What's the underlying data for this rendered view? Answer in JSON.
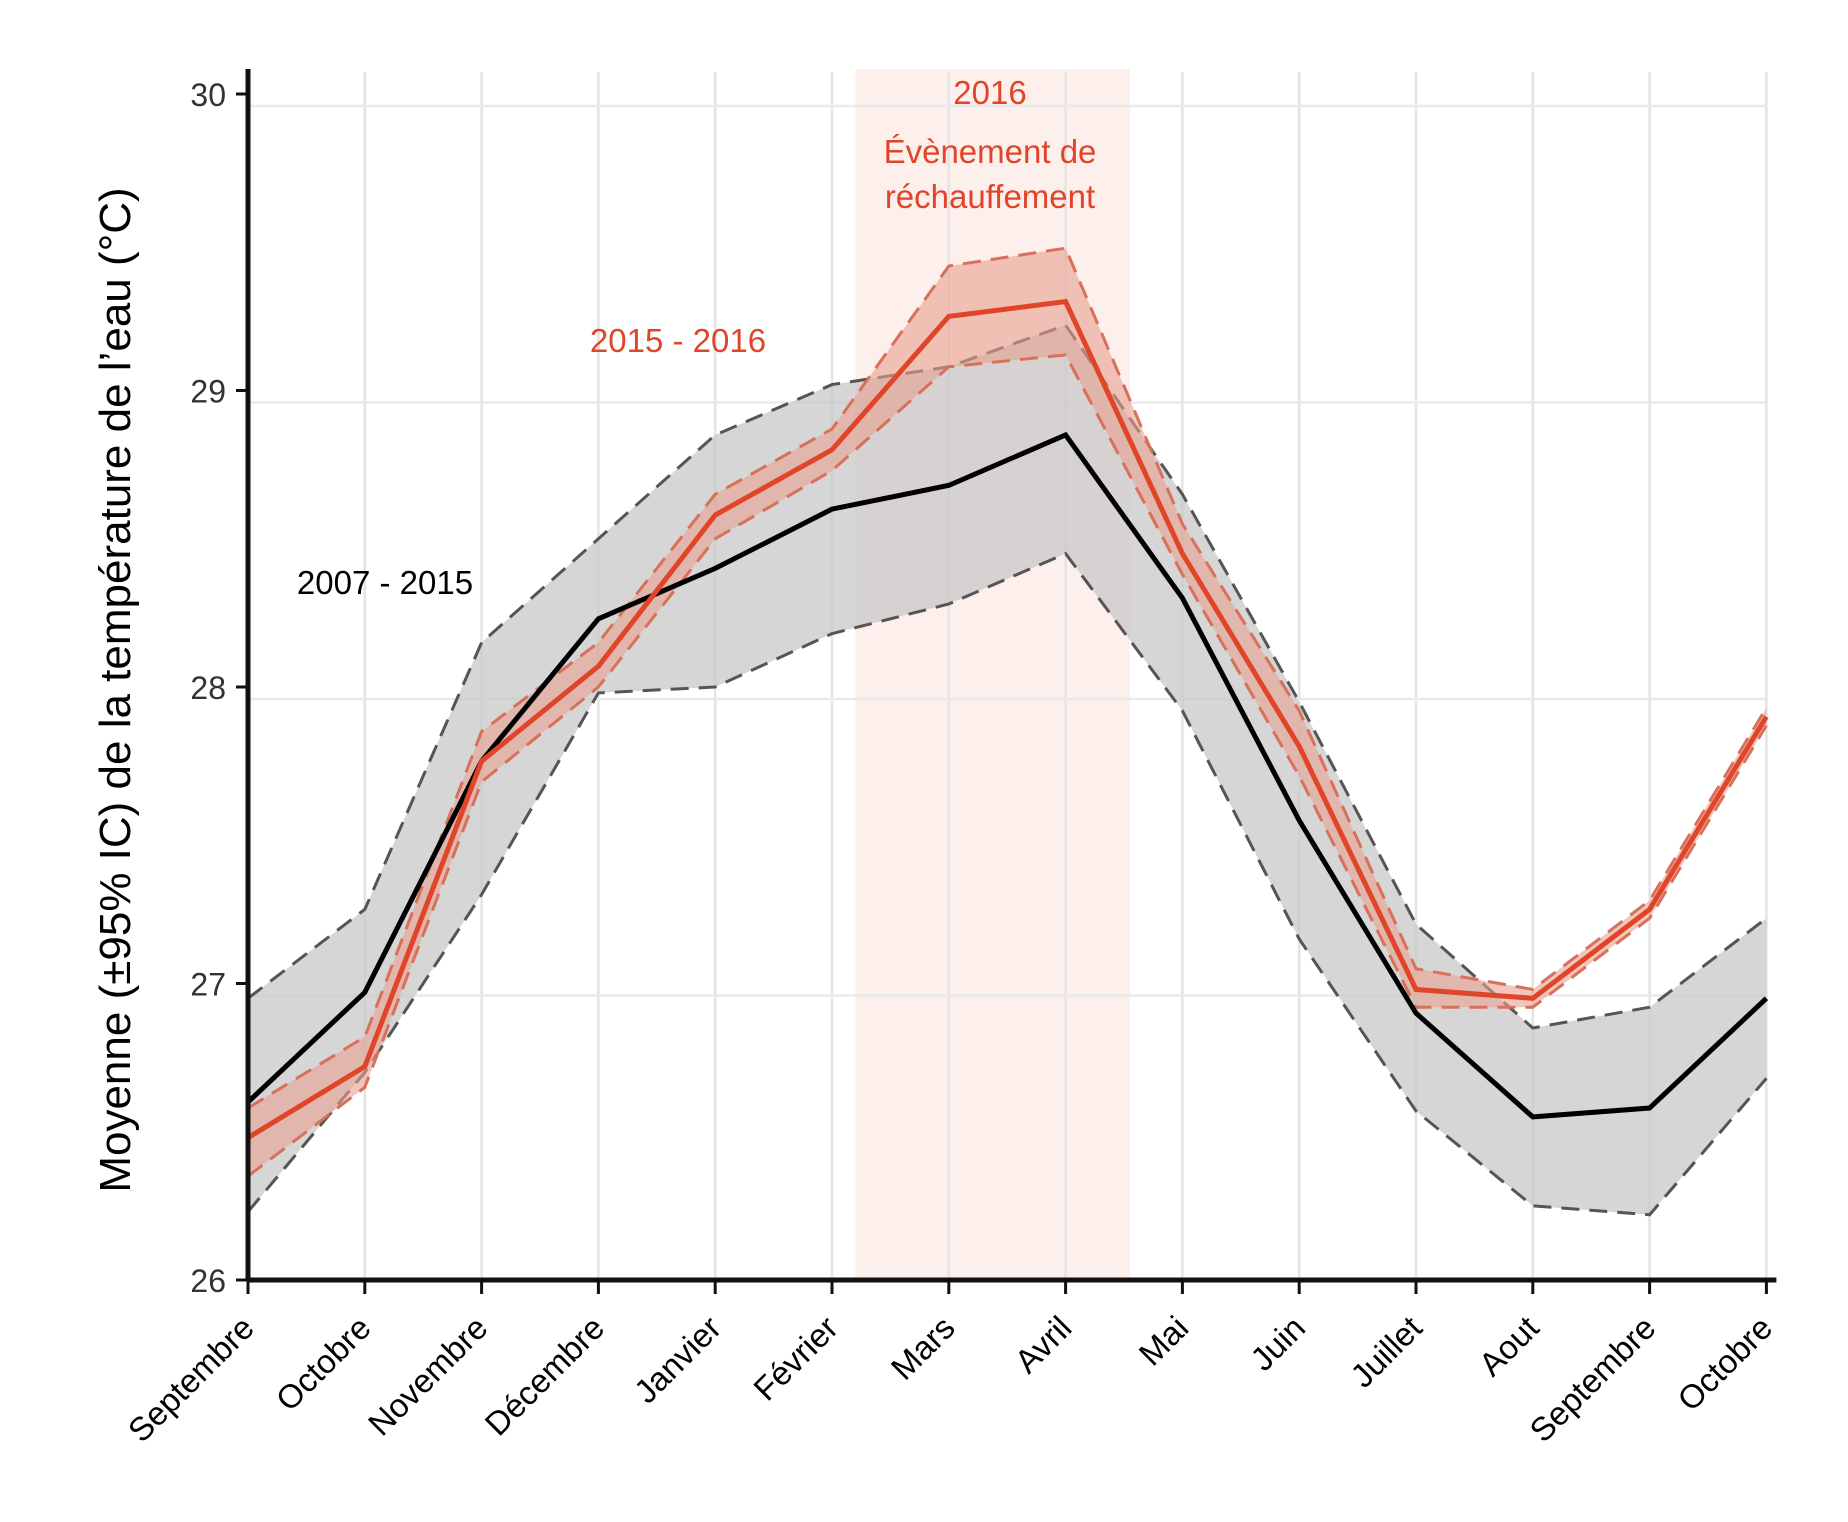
{
  "chart_data": {
    "type": "line",
    "title": "",
    "xlabel": "",
    "ylabel": "Moyenne (±95% IC)  de la température de l’eau (°C)",
    "ylim": [
      26,
      30
    ],
    "yticks": [
      26,
      27,
      28,
      29,
      30
    ],
    "grid": true,
    "categories": [
      "Septembre",
      "Octobre",
      "Novembre",
      "Décembre",
      "Janvier",
      "Février",
      "Mars",
      "Avril",
      "Mai",
      "Juin",
      "Juillet",
      "Aout",
      "Septembre",
      "Octobre"
    ],
    "series": [
      {
        "name": "2007 - 2015",
        "color": "#000000",
        "band_color": "#c8c8c8",
        "values": [
          26.6,
          26.97,
          27.75,
          28.23,
          28.4,
          28.6,
          28.68,
          28.85,
          28.3,
          27.55,
          26.9,
          26.55,
          26.58,
          26.95
        ],
        "upper": [
          26.95,
          27.25,
          28.15,
          28.5,
          28.85,
          29.02,
          29.08,
          29.22,
          28.65,
          27.95,
          27.2,
          26.85,
          26.92,
          27.22
        ],
        "lower": [
          26.23,
          26.7,
          27.3,
          27.98,
          28.0,
          28.18,
          28.28,
          28.45,
          27.92,
          27.15,
          26.57,
          26.25,
          26.22,
          26.68
        ]
      },
      {
        "name": "2015 - 2016",
        "color": "#e0452a",
        "band_color": "#e8a08f",
        "values": [
          26.48,
          26.72,
          27.75,
          28.07,
          28.58,
          28.8,
          29.25,
          29.3,
          28.45,
          27.8,
          26.98,
          26.95,
          27.25,
          27.9
        ],
        "upper": [
          26.58,
          26.82,
          27.85,
          28.15,
          28.65,
          28.87,
          29.42,
          29.48,
          28.55,
          27.92,
          27.05,
          26.98,
          27.28,
          27.93
        ],
        "lower": [
          26.35,
          26.65,
          27.68,
          28.0,
          28.5,
          28.73,
          29.08,
          29.12,
          28.38,
          27.7,
          26.92,
          26.92,
          27.22,
          27.87
        ]
      }
    ],
    "highlight_region": {
      "from": "Mars",
      "to": "Avril",
      "from_index": 5.2,
      "to_index": 7.55,
      "color": "#fdf0ec"
    },
    "annotations": [
      {
        "text": "2007 - 2015",
        "color": "#000000"
      },
      {
        "text": "2015 - 2016",
        "color": "#e0452a"
      },
      {
        "text": "2016",
        "color": "#e0452a"
      },
      {
        "text": "Évènement de",
        "color": "#e0452a"
      },
      {
        "text": "réchauffement",
        "color": "#e0452a"
      }
    ]
  }
}
